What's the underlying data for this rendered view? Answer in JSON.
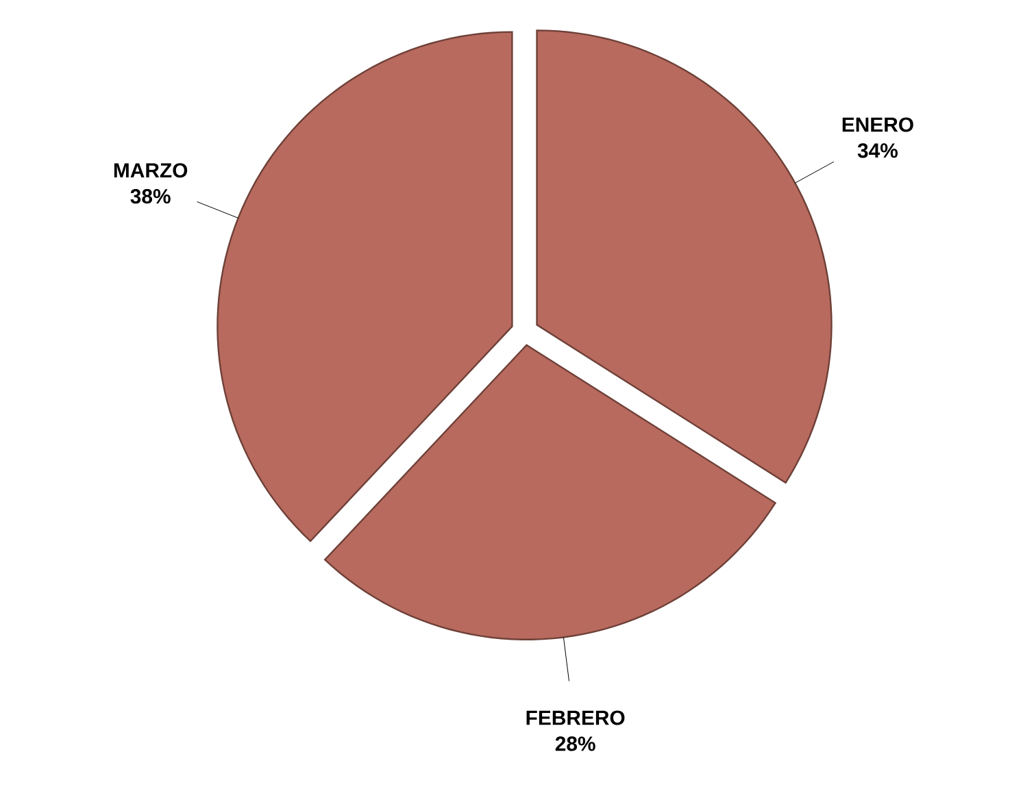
{
  "chart_data": {
    "type": "pie",
    "categories": [
      "ENERO",
      "FEBRERO",
      "MARZO"
    ],
    "values": [
      34,
      28,
      38
    ],
    "value_labels": [
      "34%",
      "28%",
      "38%"
    ],
    "colors": [
      "#b86a5e",
      "#b86a5e",
      "#b86a5e"
    ]
  }
}
